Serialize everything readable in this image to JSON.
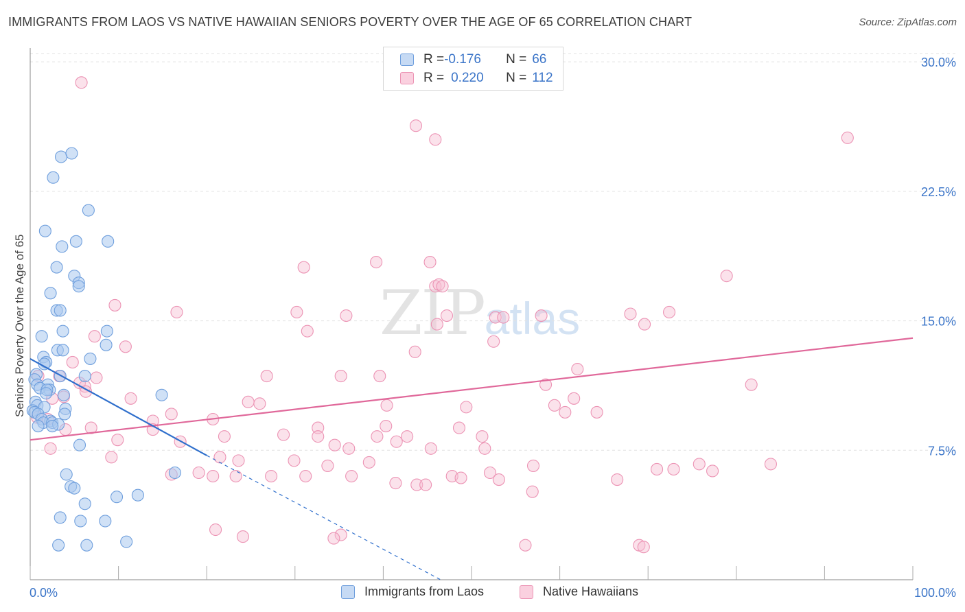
{
  "header": {
    "title": "IMMIGRANTS FROM LAOS VS NATIVE HAWAIIAN SENIORS POVERTY OVER THE AGE OF 65 CORRELATION CHART",
    "source": "Source: ZipAtlas.com"
  },
  "watermark": {
    "zip": "ZIP",
    "atlas": "atlas"
  },
  "legend": {
    "rows": [
      {
        "r_label": "R = ",
        "r_value": "-0.176",
        "n_label": "N = ",
        "n_value": "66"
      },
      {
        "r_label": "R = ",
        "r_value": "0.220",
        "n_label": "N = ",
        "n_value": "112"
      }
    ]
  },
  "chart_data": {
    "type": "scatter",
    "title": "IMMIGRANTS FROM LAOS VS NATIVE HAWAIIAN SENIORS POVERTY OVER THE AGE OF 65 CORRELATION CHART",
    "xlabel": "",
    "ylabel": "Seniors Poverty Over the Age of 65",
    "xlim": [
      0,
      100
    ],
    "ylim": [
      0,
      30.8
    ],
    "x_tick_labels": [
      "0.0%",
      "100.0%"
    ],
    "y_ticks": [
      7.5,
      15.0,
      22.5,
      30.0
    ],
    "y_tick_labels": [
      "7.5%",
      "15.0%",
      "22.5%",
      "30.0%"
    ],
    "grid": true,
    "legend_position": "top-center",
    "colors": {
      "blue_fill": "#a9c8ef",
      "blue_stroke": "#6f9fdd",
      "blue_line": "#2f6fcc",
      "pink_fill": "#f7bfd2",
      "pink_stroke": "#ec93b4",
      "pink_line": "#e0689a",
      "tick_label": "#3a74c8",
      "grid": "#e2e2e2"
    },
    "series": [
      {
        "name": "Immigrants from Laos",
        "color": "#a9c8ef",
        "trend": {
          "x0": 0,
          "y0": 12.8,
          "x1": 20,
          "y1": 7.2,
          "dash_to_x": 46.5,
          "dash_to_y": 0
        },
        "points": [
          [
            3.5,
            24.5
          ],
          [
            4.7,
            24.7
          ],
          [
            2.6,
            23.3
          ],
          [
            6.6,
            21.4
          ],
          [
            1.7,
            20.2
          ],
          [
            5.2,
            19.6
          ],
          [
            8.8,
            19.6
          ],
          [
            3.6,
            19.3
          ],
          [
            3.0,
            18.1
          ],
          [
            5.0,
            17.6
          ],
          [
            5.5,
            17.2
          ],
          [
            5.5,
            17.0
          ],
          [
            2.3,
            16.6
          ],
          [
            3.0,
            15.6
          ],
          [
            3.4,
            15.6
          ],
          [
            3.7,
            14.4
          ],
          [
            8.7,
            14.4
          ],
          [
            1.3,
            14.1
          ],
          [
            8.6,
            13.6
          ],
          [
            3.1,
            13.3
          ],
          [
            3.7,
            13.3
          ],
          [
            1.5,
            12.9
          ],
          [
            6.8,
            12.8
          ],
          [
            1.8,
            12.6
          ],
          [
            1.6,
            12.5
          ],
          [
            0.7,
            11.9
          ],
          [
            6.2,
            11.8
          ],
          [
            3.4,
            11.8
          ],
          [
            0.5,
            11.6
          ],
          [
            2.0,
            11.3
          ],
          [
            0.8,
            11.3
          ],
          [
            1.1,
            11.1
          ],
          [
            2.2,
            11.0
          ],
          [
            1.9,
            11.0
          ],
          [
            1.8,
            10.8
          ],
          [
            0.6,
            10.3
          ],
          [
            3.8,
            10.7
          ],
          [
            14.9,
            10.7
          ],
          [
            0.8,
            10.1
          ],
          [
            1.6,
            10.0
          ],
          [
            4.0,
            9.9
          ],
          [
            0.3,
            9.8
          ],
          [
            0.5,
            9.7
          ],
          [
            0.9,
            9.6
          ],
          [
            3.9,
            9.6
          ],
          [
            1.3,
            9.3
          ],
          [
            2.3,
            9.2
          ],
          [
            1.5,
            9.1
          ],
          [
            2.5,
            9.1
          ],
          [
            3.2,
            9.0
          ],
          [
            0.9,
            8.9
          ],
          [
            2.5,
            8.9
          ],
          [
            5.6,
            7.8
          ],
          [
            4.1,
            6.1
          ],
          [
            16.4,
            6.2
          ],
          [
            4.6,
            5.4
          ],
          [
            5.0,
            5.3
          ],
          [
            12.2,
            4.9
          ],
          [
            9.8,
            4.8
          ],
          [
            6.2,
            4.4
          ],
          [
            3.4,
            3.6
          ],
          [
            5.7,
            3.4
          ],
          [
            8.5,
            3.4
          ],
          [
            10.9,
            2.2
          ],
          [
            3.2,
            2.0
          ],
          [
            6.4,
            2.0
          ]
        ]
      },
      {
        "name": "Native Hawaiians",
        "color": "#f7bfd2",
        "trend": {
          "x0": 0,
          "y0": 8.1,
          "x1": 100,
          "y1": 14.0
        },
        "points": [
          [
            5.8,
            28.8
          ],
          [
            43.7,
            26.3
          ],
          [
            45.9,
            25.5
          ],
          [
            92.6,
            25.6
          ],
          [
            31.0,
            18.1
          ],
          [
            39.2,
            18.4
          ],
          [
            45.3,
            18.4
          ],
          [
            45.9,
            17.0
          ],
          [
            46.3,
            17.1
          ],
          [
            46.7,
            17.0
          ],
          [
            78.9,
            17.6
          ],
          [
            9.6,
            15.9
          ],
          [
            16.6,
            15.5
          ],
          [
            30.2,
            15.5
          ],
          [
            35.8,
            15.3
          ],
          [
            47.2,
            15.3
          ],
          [
            52.7,
            15.2
          ],
          [
            53.6,
            15.2
          ],
          [
            57.9,
            15.3
          ],
          [
            68.0,
            15.4
          ],
          [
            72.4,
            15.5
          ],
          [
            46.1,
            14.8
          ],
          [
            69.6,
            14.8
          ],
          [
            31.4,
            14.4
          ],
          [
            7.3,
            14.1
          ],
          [
            52.5,
            13.8
          ],
          [
            10.8,
            13.5
          ],
          [
            43.6,
            13.2
          ],
          [
            4.8,
            12.6
          ],
          [
            0.9,
            11.8
          ],
          [
            26.8,
            11.8
          ],
          [
            3.3,
            11.8
          ],
          [
            35.2,
            11.8
          ],
          [
            39.6,
            11.8
          ],
          [
            62.0,
            12.2
          ],
          [
            7.5,
            11.7
          ],
          [
            5.6,
            11.4
          ],
          [
            6.2,
            11.2
          ],
          [
            6.3,
            10.9
          ],
          [
            58.4,
            11.3
          ],
          [
            81.7,
            11.3
          ],
          [
            61.6,
            10.5
          ],
          [
            2.5,
            10.5
          ],
          [
            3.8,
            10.6
          ],
          [
            11.4,
            10.5
          ],
          [
            24.7,
            10.3
          ],
          [
            26.0,
            10.2
          ],
          [
            40.4,
            10.1
          ],
          [
            49.4,
            10.0
          ],
          [
            59.4,
            10.1
          ],
          [
            16.0,
            9.6
          ],
          [
            0.8,
            9.4
          ],
          [
            2.0,
            9.3
          ],
          [
            13.9,
            9.2
          ],
          [
            20.7,
            9.3
          ],
          [
            32.6,
            8.8
          ],
          [
            40.3,
            8.9
          ],
          [
            48.6,
            8.8
          ],
          [
            60.6,
            9.7
          ],
          [
            64.2,
            9.7
          ],
          [
            4.0,
            8.7
          ],
          [
            6.9,
            8.8
          ],
          [
            13.9,
            8.7
          ],
          [
            22.0,
            8.3
          ],
          [
            28.7,
            8.4
          ],
          [
            32.6,
            8.3
          ],
          [
            39.3,
            8.3
          ],
          [
            42.7,
            8.3
          ],
          [
            41.5,
            8.0
          ],
          [
            51.2,
            8.3
          ],
          [
            9.9,
            8.1
          ],
          [
            17.0,
            8.0
          ],
          [
            34.5,
            7.8
          ],
          [
            36.1,
            7.6
          ],
          [
            45.4,
            7.6
          ],
          [
            51.5,
            7.6
          ],
          [
            2.3,
            7.6
          ],
          [
            57.0,
            6.6
          ],
          [
            9.2,
            7.1
          ],
          [
            21.5,
            7.1
          ],
          [
            23.6,
            6.9
          ],
          [
            29.9,
            6.9
          ],
          [
            33.7,
            6.6
          ],
          [
            16.0,
            6.1
          ],
          [
            19.1,
            6.2
          ],
          [
            20.7,
            6.0
          ],
          [
            23.3,
            6.0
          ],
          [
            27.3,
            6.0
          ],
          [
            31.2,
            6.0
          ],
          [
            36.4,
            6.0
          ],
          [
            41.4,
            5.6
          ],
          [
            43.8,
            5.5
          ],
          [
            44.8,
            5.5
          ],
          [
            47.8,
            6.0
          ],
          [
            48.8,
            5.9
          ],
          [
            52.1,
            6.2
          ],
          [
            53.1,
            5.8
          ],
          [
            56.9,
            5.1
          ],
          [
            66.5,
            5.8
          ],
          [
            71.0,
            6.4
          ],
          [
            72.9,
            6.4
          ],
          [
            77.3,
            6.3
          ],
          [
            69.0,
            2.0
          ],
          [
            56.1,
            2.0
          ],
          [
            75.8,
            6.7
          ],
          [
            83.9,
            6.7
          ],
          [
            38.4,
            6.8
          ],
          [
            69.5,
            1.9
          ],
          [
            21.0,
            2.9
          ],
          [
            24.1,
            2.5
          ],
          [
            35.2,
            2.6
          ],
          [
            34.4,
            2.4
          ]
        ]
      }
    ]
  },
  "bottom_legend": {
    "items": [
      {
        "label": "Immigrants from Laos"
      },
      {
        "label": "Native Hawaiians"
      }
    ]
  }
}
